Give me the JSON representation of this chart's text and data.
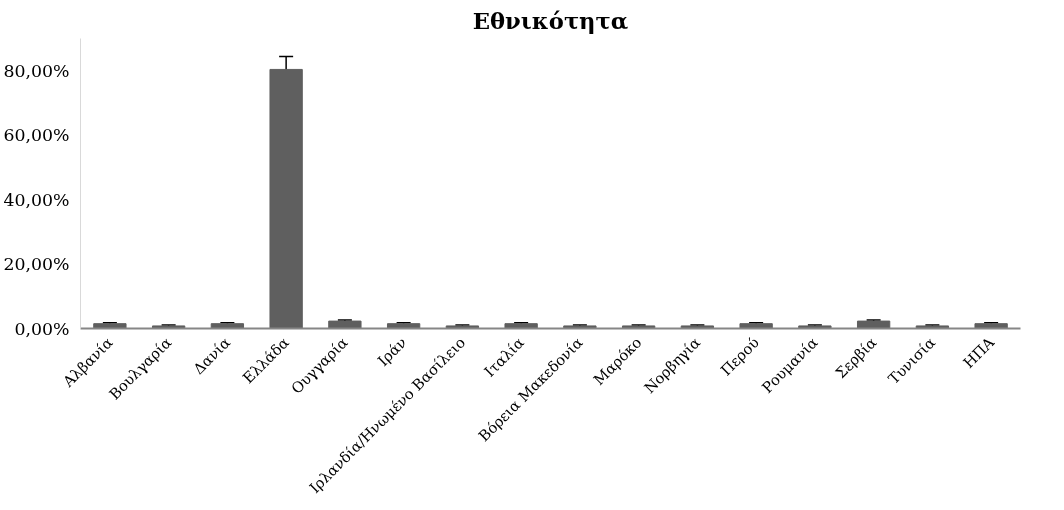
{
  "chart_data": {
    "type": "bar",
    "title": "Εθνικότητα",
    "categories": [
      "Αλβανία",
      "Βουλγαρία",
      "Δανία",
      "Ελλάδα",
      "Ουγγαρία",
      "Ιράν",
      "Ιρλανδία/Ηνωμένο Βασίλειο",
      "Ιταλία",
      "Βόρεια Μακεδονία",
      "Μαρόκο",
      "Νορβηγία",
      "Περού",
      "Ρουμανία",
      "Σερβία",
      "Τυνισία",
      "ΗΠΑ"
    ],
    "values": [
      1.5,
      0.8,
      1.5,
      80.4,
      2.3,
      1.5,
      0.8,
      1.5,
      0.8,
      0.8,
      0.8,
      1.5,
      0.8,
      2.3,
      0.8,
      1.5
    ],
    "errors": [
      0.3,
      0.3,
      0.3,
      4,
      0.3,
      0.3,
      0.3,
      0.3,
      0.3,
      0.3,
      0.3,
      0.3,
      0.3,
      0.3,
      0.3,
      0.3
    ],
    "color": "#5f5f5f",
    "ylim": [
      0,
      90
    ],
    "yticks": [
      {
        "value": 0,
        "label": "0,00%"
      },
      {
        "value": 20,
        "label": "20,00%"
      },
      {
        "value": 40,
        "label": "40,00%"
      },
      {
        "value": 60,
        "label": "60,00%"
      },
      {
        "value": 80,
        "label": "80,00%"
      }
    ],
    "grid": false
  }
}
